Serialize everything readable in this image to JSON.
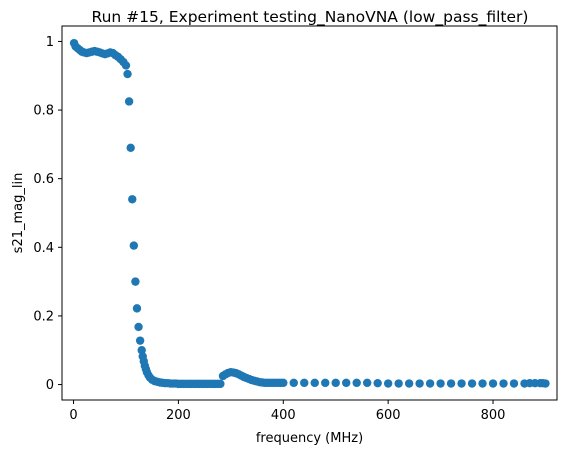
{
  "chart_data": {
    "type": "scatter",
    "title": "Run #15, Experiment testing_NanoVNA (low_pass_filter)",
    "xlabel": "frequency (MHz)",
    "ylabel": "s21_mag_lin",
    "xlim": [
      -22,
      922
    ],
    "ylim": [
      -0.045,
      1.045
    ],
    "xticks": [
      0,
      200,
      400,
      600,
      800
    ],
    "yticks": [
      0,
      0.2,
      0.4,
      0.6,
      0.8,
      1.0
    ],
    "xtick_labels": [
      "0",
      "200",
      "400",
      "600",
      "800"
    ],
    "ytick_labels": [
      "0",
      "0.2",
      "0.4",
      "0.6",
      "0.8",
      "1"
    ],
    "grid": false,
    "marker_color": "#1f77b4",
    "series": [
      {
        "x": [
          1,
          4,
          8,
          12,
          16,
          20,
          25,
          30,
          35,
          40,
          45,
          50,
          55,
          60,
          65,
          70,
          75,
          80,
          85,
          90,
          95,
          100,
          103,
          106,
          109,
          112,
          115,
          118,
          121,
          124,
          127,
          130,
          132,
          134,
          136,
          138,
          140,
          143,
          146,
          150,
          155,
          160,
          165,
          170,
          175,
          180,
          185,
          190,
          195,
          200,
          205,
          210,
          215,
          220,
          225,
          230,
          235,
          240,
          245,
          250,
          255,
          260,
          265,
          270,
          275,
          280,
          285,
          290,
          295,
          300,
          305,
          310,
          315,
          320,
          325,
          330,
          335,
          340,
          345,
          350,
          355,
          360,
          365,
          370,
          375,
          380,
          385,
          390,
          395,
          400,
          420,
          440,
          460,
          480,
          500,
          520,
          540,
          560,
          580,
          600,
          620,
          640,
          660,
          680,
          700,
          720,
          740,
          760,
          780,
          800,
          820,
          840,
          860,
          870,
          880,
          890,
          895,
          900
        ],
        "y": [
          0.995,
          0.985,
          0.98,
          0.975,
          0.97,
          0.968,
          0.966,
          0.968,
          0.97,
          0.972,
          0.97,
          0.968,
          0.965,
          0.963,
          0.965,
          0.968,
          0.966,
          0.96,
          0.955,
          0.948,
          0.94,
          0.93,
          0.905,
          0.825,
          0.69,
          0.54,
          0.405,
          0.3,
          0.222,
          0.168,
          0.128,
          0.1,
          0.082,
          0.068,
          0.055,
          0.045,
          0.036,
          0.027,
          0.02,
          0.014,
          0.01,
          0.008,
          0.006,
          0.005,
          0.004,
          0.004,
          0.003,
          0.003,
          0.003,
          0.002,
          0.002,
          0.002,
          0.002,
          0.002,
          0.002,
          0.002,
          0.002,
          0.002,
          0.002,
          0.002,
          0.002,
          0.002,
          0.002,
          0.002,
          0.002,
          0.002,
          0.025,
          0.03,
          0.034,
          0.036,
          0.035,
          0.033,
          0.03,
          0.026,
          0.022,
          0.019,
          0.016,
          0.013,
          0.011,
          0.009,
          0.007,
          0.006,
          0.005,
          0.005,
          0.005,
          0.005,
          0.005,
          0.005,
          0.005,
          0.005,
          0.005,
          0.005,
          0.005,
          0.005,
          0.005,
          0.005,
          0.005,
          0.005,
          0.004,
          0.003,
          0.003,
          0.003,
          0.003,
          0.003,
          0.003,
          0.003,
          0.003,
          0.003,
          0.003,
          0.003,
          0.003,
          0.003,
          0.003,
          0.004,
          0.004,
          0.004,
          0.004,
          0.003
        ]
      }
    ]
  }
}
